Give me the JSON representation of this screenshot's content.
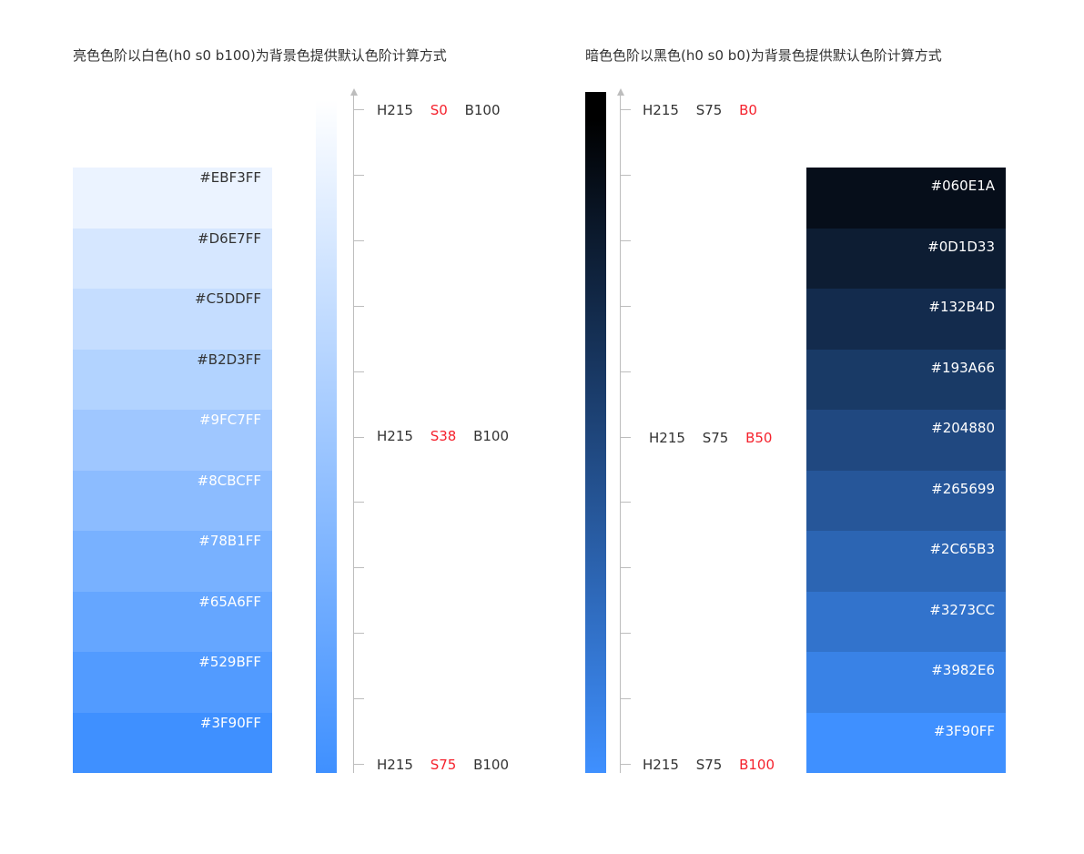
{
  "light": {
    "title": "亮色色阶以白色(h0 s0 b100)为背景色提供默认色阶计算方式",
    "swatches": [
      {
        "hex": "#EBF3FF",
        "label": "#EBF3FF",
        "text_color": "#333333"
      },
      {
        "hex": "#D6E7FF",
        "label": "#D6E7FF",
        "text_color": "#333333"
      },
      {
        "hex": "#C5DDFF",
        "label": "#C5DDFF",
        "text_color": "#333333"
      },
      {
        "hex": "#B2D3FF",
        "label": "#B2D3FF",
        "text_color": "#333333"
      },
      {
        "hex": "#9FC7FF",
        "label": "#9FC7FF",
        "text_color": "#ffffff"
      },
      {
        "hex": "#8CBCFF",
        "label": "#8CBCFF",
        "text_color": "#ffffff"
      },
      {
        "hex": "#78B1FF",
        "label": "#78B1FF",
        "text_color": "#ffffff"
      },
      {
        "hex": "#65A6FF",
        "label": "#65A6FF",
        "text_color": "#ffffff"
      },
      {
        "hex": "#529BFF",
        "label": "#529BFF",
        "text_color": "#ffffff"
      },
      {
        "hex": "#3F90FF",
        "label": "#3F90FF",
        "text_color": "#ffffff"
      }
    ],
    "gradient": {
      "from": "#ffffff",
      "to": "#3F90FF"
    },
    "annotations": {
      "top": {
        "h": "H215",
        "s": "S0",
        "b": "B100"
      },
      "middle": {
        "h": "H215",
        "s": "S38",
        "b": "B100"
      },
      "bottom": {
        "h": "H215",
        "s": "S75",
        "b": "B100"
      }
    }
  },
  "dark": {
    "title": "暗色色阶以黑色(h0 s0 b0)为背景色提供默认色阶计算方式",
    "swatches": [
      {
        "hex": "#060E1A",
        "label": "#060E1A",
        "text_color": "#ffffff"
      },
      {
        "hex": "#0D1D33",
        "label": "#0D1D33",
        "text_color": "#ffffff"
      },
      {
        "hex": "#132B4D",
        "label": "#132B4D",
        "text_color": "#ffffff"
      },
      {
        "hex": "#193A66",
        "label": "#193A66",
        "text_color": "#ffffff"
      },
      {
        "hex": "#204880",
        "label": "#204880",
        "text_color": "#ffffff"
      },
      {
        "hex": "#265699",
        "label": "#265699",
        "text_color": "#ffffff"
      },
      {
        "hex": "#2C65B3",
        "label": "#2C65B3",
        "text_color": "#ffffff"
      },
      {
        "hex": "#3273CC",
        "label": "#3273CC",
        "text_color": "#ffffff"
      },
      {
        "hex": "#3982E6",
        "label": "#3982E6",
        "text_color": "#ffffff"
      },
      {
        "hex": "#3F90FF",
        "label": "#3F90FF",
        "text_color": "#ffffff"
      }
    ],
    "gradient": {
      "from": "#000000",
      "to": "#3F90FF"
    },
    "annotations": {
      "top": {
        "h": "H215",
        "s": "S75",
        "b": "B0"
      },
      "middle": {
        "h": "H215",
        "s": "S75",
        "b": "B50"
      },
      "bottom": {
        "h": "H215",
        "s": "S75",
        "b": "B100"
      }
    }
  },
  "colors": {
    "highlight": "#f5222d",
    "axis": "#bdbdbd",
    "text": "#333333"
  }
}
